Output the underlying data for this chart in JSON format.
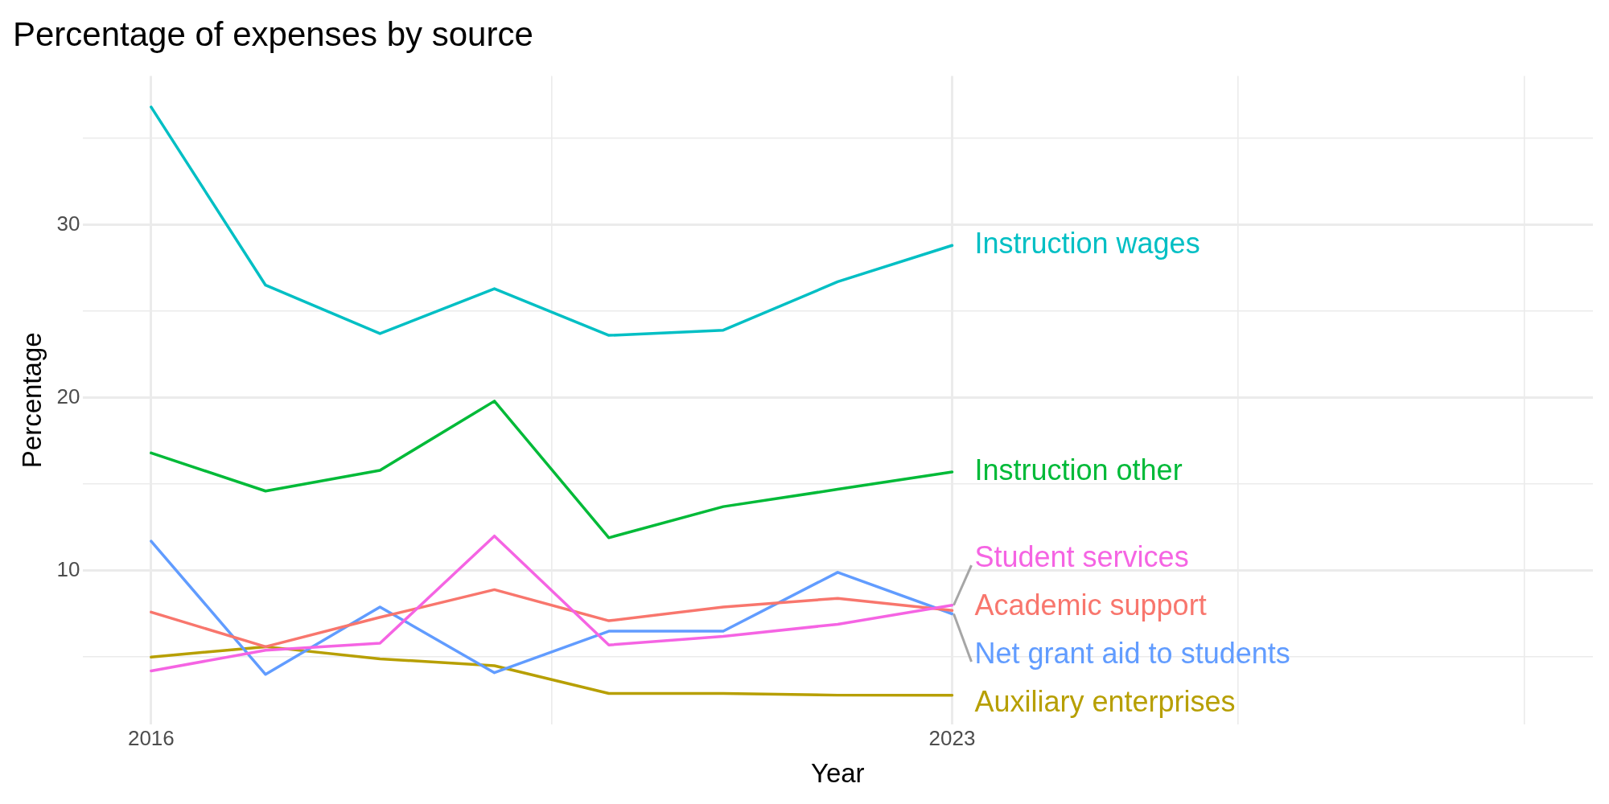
{
  "chart_data": {
    "type": "line",
    "title": "Percentage of expenses by source",
    "xlabel": "Year",
    "ylabel": "Percentage",
    "x": [
      2016,
      2017,
      2018,
      2019,
      2020,
      2021,
      2022,
      2023
    ],
    "series": [
      {
        "name": "Instruction wages",
        "color": "#00bfc4",
        "values": [
          36.8,
          26.5,
          23.7,
          26.3,
          23.6,
          23.9,
          26.7,
          28.8
        ]
      },
      {
        "name": "Instruction other",
        "color": "#00ba38",
        "values": [
          16.8,
          14.6,
          15.8,
          19.8,
          11.9,
          13.7,
          14.7,
          15.7
        ]
      },
      {
        "name": "Student services",
        "color": "#f564e3",
        "values": [
          4.2,
          5.4,
          5.8,
          12.0,
          5.7,
          6.2,
          6.9,
          8.0
        ]
      },
      {
        "name": "Academic support",
        "color": "#f8766d",
        "values": [
          7.6,
          5.6,
          7.3,
          8.9,
          7.1,
          7.9,
          8.4,
          7.7
        ]
      },
      {
        "name": "Net grant aid to students",
        "color": "#619cff",
        "values": [
          11.7,
          4.0,
          7.9,
          4.1,
          6.5,
          6.5,
          9.9,
          7.5
        ]
      },
      {
        "name": "Auxiliary enterprises",
        "color": "#b79f00",
        "values": [
          5.0,
          5.6,
          4.9,
          4.5,
          2.9,
          2.9,
          2.8,
          2.8
        ]
      }
    ],
    "xlim": [
      2015.4,
      2028.6
    ],
    "xticks": [
      2016,
      {
        "value": 2019.5,
        "label": null
      },
      2023,
      {
        "value": 2025.5,
        "label": null
      },
      {
        "value": 2028,
        "label": null
      }
    ],
    "ylim": [
      1.1,
      38.6
    ],
    "yticks": [
      {
        "value": 5,
        "label": null
      },
      10,
      {
        "value": 15,
        "label": null
      },
      20,
      {
        "value": 25,
        "label": null
      },
      30,
      {
        "value": 35,
        "label": null
      }
    ],
    "grid": true,
    "legend": false,
    "marker": "none",
    "line_style": "solid"
  }
}
